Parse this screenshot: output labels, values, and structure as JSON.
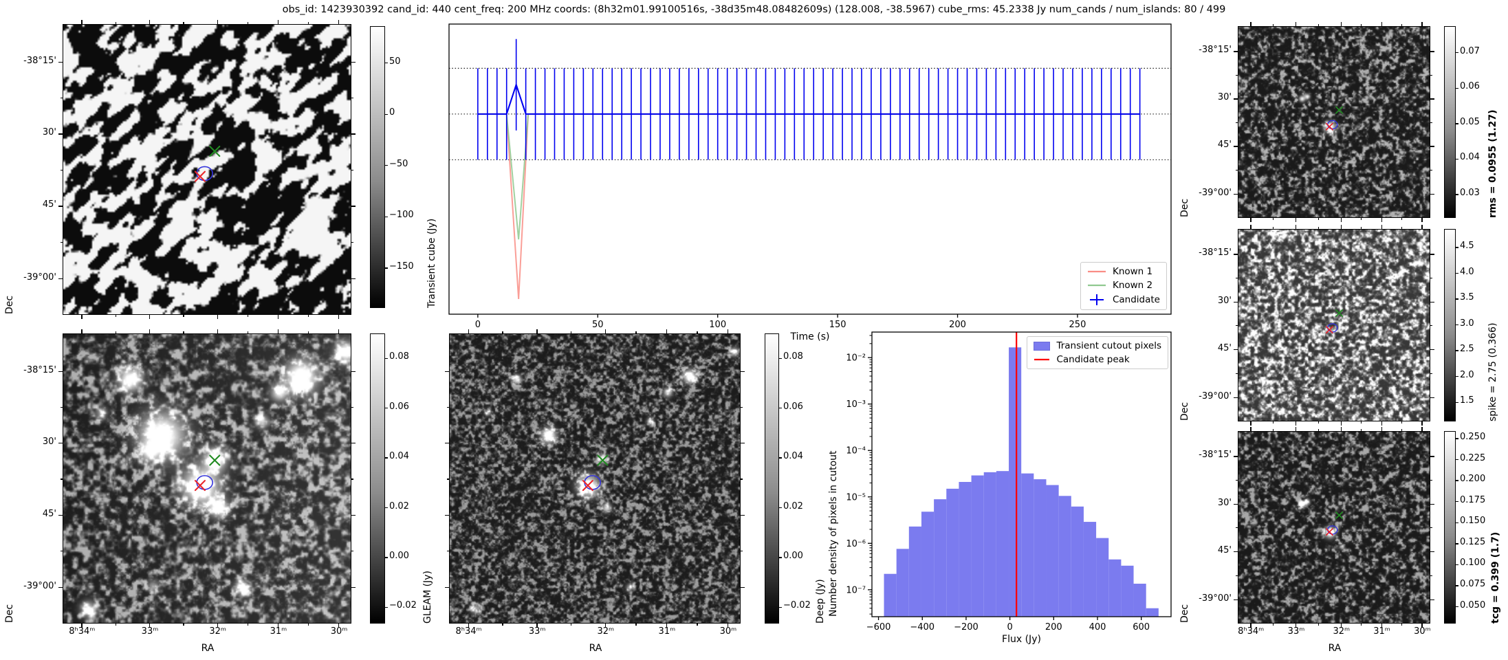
{
  "title": "obs_id: 1423930392 cand_id: 440 cent_freq: 200 MHz coords: (8h32m01.99100516s, -38d35m48.08482609s) (128.008, -38.5967) cube_rms: 45.2338 Jy num_cands / num_islands: 80 / 499",
  "colors": {
    "candidate": "#0000f0",
    "known1": "#f98d85",
    "known2": "#8fc98f",
    "hist_bar": "#7b7bef",
    "hist_line": "#ff0000",
    "marker_green": "#228b22",
    "marker_red": "#e8272c",
    "contour": "#3333dd",
    "dotted_line": "#000000"
  },
  "wcs": {
    "dec_label": "Dec",
    "ra_label": "RA",
    "dec_ticks": [
      "-38°15'",
      "30'",
      "45'",
      "-39°00'"
    ],
    "dec_fracs": [
      0.13,
      0.377,
      0.625,
      0.874
    ],
    "ra_ticks": [
      "8ʰ34ᵐ",
      "33ᵐ",
      "32ᵐ",
      "31ᵐ",
      "30ᵐ"
    ],
    "ra_fracs": [
      0.065,
      0.3,
      0.535,
      0.745,
      0.955
    ]
  },
  "markers": {
    "green": {
      "fx": 0.527,
      "fy": 0.437
    },
    "red": {
      "fx": 0.476,
      "fy": 0.524
    },
    "contour": {
      "fx": 0.492,
      "fy": 0.514
    }
  },
  "panels": {
    "cube": {
      "colorbar": {
        "label": "Transient cube (Jy)",
        "bold": false,
        "vmax": 86,
        "vmin": -189,
        "ticks": [
          {
            "v": 50,
            "label": "50"
          },
          {
            "v": 0,
            "label": "0"
          },
          {
            "v": -50,
            "label": "−50"
          },
          {
            "v": -100,
            "label": "−100"
          },
          {
            "v": -150,
            "label": "−150"
          }
        ]
      },
      "image": {
        "style": "blobs",
        "seed": 13,
        "res": 150,
        "s1": 7,
        "s2": 13,
        "sources": []
      }
    },
    "gleam": {
      "colorbar": {
        "label": "GLEAM (Jy)",
        "bold": false,
        "vmax": 0.09,
        "vmin": -0.0265,
        "ticks": [
          {
            "v": 0.08,
            "label": "0.08"
          },
          {
            "v": 0.06,
            "label": "0.06"
          },
          {
            "v": 0.04,
            "label": "0.04"
          },
          {
            "v": 0.02,
            "label": "0.02"
          },
          {
            "v": 0.0,
            "label": "0.00"
          },
          {
            "v": -0.02,
            "label": "−0.02"
          }
        ]
      },
      "image": {
        "style": "speckle",
        "seed": 29,
        "res": 210,
        "scale": 4,
        "base": 30,
        "gain": 90,
        "gamma": 2.2,
        "xgrad": 22,
        "sources": [
          [
            0.476,
            0.524,
            0.045,
            1
          ],
          [
            0.527,
            0.43,
            0.026,
            0.95
          ],
          [
            0.34,
            0.35,
            0.055,
            1
          ],
          [
            0.3,
            0.405,
            0.02,
            0.6
          ],
          [
            0.23,
            0.155,
            0.028,
            0.95
          ],
          [
            0.13,
            0.27,
            0.016,
            0.45
          ],
          [
            0.75,
            0.2,
            0.02,
            0.75
          ],
          [
            0.826,
            0.145,
            0.038,
            1
          ],
          [
            0.69,
            0.3,
            0.016,
            0.6
          ],
          [
            0.54,
            0.6,
            0.022,
            0.8
          ],
          [
            0.62,
            0.875,
            0.018,
            0.65
          ],
          [
            0.086,
            0.95,
            0.02,
            0.65
          ],
          [
            0.31,
            0.87,
            0.014,
            0.45
          ],
          [
            0.98,
            0.06,
            0.024,
            0.9
          ]
        ]
      }
    },
    "deep": {
      "colorbar": {
        "label": "Deep (Jy)",
        "bold": false,
        "vmax": 0.09,
        "vmin": -0.0265,
        "ticks": [
          {
            "v": 0.08,
            "label": "0.08"
          },
          {
            "v": 0.06,
            "label": "0.06"
          },
          {
            "v": 0.04,
            "label": "0.04"
          },
          {
            "v": 0.02,
            "label": "0.02"
          },
          {
            "v": 0.0,
            "label": "0.00"
          },
          {
            "v": -0.02,
            "label": "−0.02"
          }
        ]
      },
      "image": {
        "style": "speckle",
        "seed": 47,
        "res": 300,
        "scale": 3.4,
        "base": 28,
        "gain": 80,
        "gamma": 2.2,
        "xgrad": 0,
        "sources": [
          [
            0.476,
            0.524,
            0.026,
            1
          ],
          [
            0.527,
            0.43,
            0.011,
            0.85
          ],
          [
            0.34,
            0.35,
            0.018,
            1
          ],
          [
            0.23,
            0.155,
            0.011,
            0.8
          ],
          [
            0.75,
            0.2,
            0.011,
            0.75
          ],
          [
            0.826,
            0.145,
            0.016,
            1
          ],
          [
            0.69,
            0.3,
            0.009,
            0.6
          ],
          [
            0.54,
            0.6,
            0.011,
            0.75
          ],
          [
            0.62,
            0.875,
            0.009,
            0.55
          ],
          [
            0.086,
            0.95,
            0.012,
            0.6
          ],
          [
            0.98,
            0.06,
            0.011,
            0.7
          ],
          [
            0.13,
            0.27,
            0.009,
            0.45
          ]
        ]
      }
    },
    "rms": {
      "colorbar": {
        "label": "rms = 0.0955 (1.27)",
        "bold": true,
        "vmax": 0.0775,
        "vmin": 0.0234,
        "ticks": [
          {
            "v": 0.07,
            "label": "0.07"
          },
          {
            "v": 0.06,
            "label": "0.06"
          },
          {
            "v": 0.05,
            "label": "0.05"
          },
          {
            "v": 0.04,
            "label": "0.04"
          },
          {
            "v": 0.03,
            "label": "0.03"
          }
        ]
      },
      "image": {
        "style": "speckle",
        "seed": 61,
        "res": 170,
        "scale": 3,
        "base": 26,
        "gain": 95,
        "gamma": 3,
        "sources": [
          [
            0.476,
            0.524,
            0.02,
            1
          ],
          [
            0.33,
            0.375,
            0.011,
            0.85
          ],
          [
            0.357,
            0.363,
            0.01,
            0.8
          ]
        ]
      }
    },
    "spike": {
      "colorbar": {
        "label": "spike = 2.75 (0.366)",
        "bold": false,
        "vmax": 4.86,
        "vmin": 1.13,
        "ticks": [
          {
            "v": 4.5,
            "label": "4.5"
          },
          {
            "v": 4.0,
            "label": "4.0"
          },
          {
            "v": 3.5,
            "label": "3.5"
          },
          {
            "v": 3.0,
            "label": "3.0"
          },
          {
            "v": 2.5,
            "label": "2.5"
          },
          {
            "v": 2.0,
            "label": "2.0"
          },
          {
            "v": 1.5,
            "label": "1.5"
          }
        ]
      },
      "image": {
        "style": "speckle",
        "seed": 71,
        "res": 170,
        "scale": 3,
        "base": 55,
        "gain": 135,
        "gamma": 2.0,
        "sources": []
      }
    },
    "tcg": {
      "colorbar": {
        "label": "tcg = 0.399 (1.7)",
        "bold": true,
        "vmax": 0.259,
        "vmin": 0.03,
        "ticks": [
          {
            "v": 0.25,
            "label": "0.250"
          },
          {
            "v": 0.225,
            "label": "0.225"
          },
          {
            "v": 0.2,
            "label": "0.200"
          },
          {
            "v": 0.175,
            "label": "0.175"
          },
          {
            "v": 0.15,
            "label": "0.150"
          },
          {
            "v": 0.125,
            "label": "0.125"
          },
          {
            "v": 0.1,
            "label": "0.100"
          },
          {
            "v": 0.075,
            "label": "0.075"
          },
          {
            "v": 0.05,
            "label": "0.050"
          }
        ]
      },
      "image": {
        "style": "speckle",
        "seed": 83,
        "res": 170,
        "scale": 3,
        "base": 26,
        "gain": 88,
        "gamma": 3,
        "sources": [
          [
            0.476,
            0.524,
            0.02,
            1
          ],
          [
            0.33,
            0.375,
            0.011,
            0.85
          ],
          [
            0.357,
            0.363,
            0.01,
            0.75
          ],
          [
            0.54,
            0.6,
            0.009,
            0.55
          ]
        ]
      }
    }
  },
  "chart_data": [
    {
      "type": "line",
      "name": "candidate-lightcurve",
      "xlabel": "Time (s)",
      "ylabel": "",
      "xlim": [
        -12,
        289
      ],
      "ylim": [
        -198,
        89
      ],
      "x_ticks": [
        0,
        50,
        100,
        150,
        200,
        250
      ],
      "hlines": [
        45.2338,
        0,
        -45.2338
      ],
      "series": [
        {
          "name": "Known 1",
          "style": "line",
          "color": "#f98d85",
          "x": [
            0,
            12,
            17,
            21,
            276
          ],
          "y": [
            0,
            0,
            -183,
            0,
            0
          ]
        },
        {
          "name": "Known 2",
          "style": "line",
          "color": "#8fc98f",
          "x": [
            0,
            12,
            17,
            21,
            276
          ],
          "y": [
            0,
            0,
            -124,
            0,
            0
          ]
        },
        {
          "name": "Candidate",
          "style": "errorbar",
          "color": "#0000f0",
          "t_start": 0,
          "t_step": 4,
          "n": 70,
          "base": 0,
          "err": 45.2338,
          "spike_t": 16,
          "spike_y": 29
        }
      ],
      "legend": [
        "Known 1",
        "Known 2",
        "Candidate"
      ],
      "legend_position": "lower right"
    },
    {
      "type": "bar",
      "name": "flux-histogram",
      "xlabel": "Flux (Jy)",
      "ylabel": "Number density of pixels in cutout",
      "xlim": [
        -630,
        736
      ],
      "ylog_top": -1.45,
      "ylog_bottom": -7.58,
      "x_ticks": [
        -600,
        -400,
        -200,
        0,
        200,
        400,
        600
      ],
      "y_ticks": [
        {
          "exp": -2,
          "label": "10⁻²"
        },
        {
          "exp": -3,
          "label": "10⁻³"
        },
        {
          "exp": -4,
          "label": "10⁻⁴"
        },
        {
          "exp": -5,
          "label": "10⁻⁵"
        },
        {
          "exp": -6,
          "label": "10⁻⁶"
        },
        {
          "exp": -7,
          "label": "10⁻⁷"
        }
      ],
      "bin_start": -575,
      "bin_width": 57,
      "values": [
        2.2e-07,
        7.6e-07,
        2.3e-06,
        4.8e-06,
        8.9e-06,
        1.5e-05,
        2.1e-05,
        2.9e-05,
        3.4e-05,
        3.6e-05,
        0.0166,
        3.2e-05,
        2.4e-05,
        1.8e-05,
        1.05e-05,
        6.2e-06,
        2.9e-06,
        1.3e-06,
        4.5e-07,
        3.3e-07,
        1.35e-07,
        4e-08
      ],
      "candidate_peak": 30,
      "bar_color": "#7b7bef",
      "line_color": "#ff0000",
      "legend": [
        "Transient cutout pixels",
        "Candidate peak"
      ],
      "legend_position": "upper right"
    }
  ]
}
